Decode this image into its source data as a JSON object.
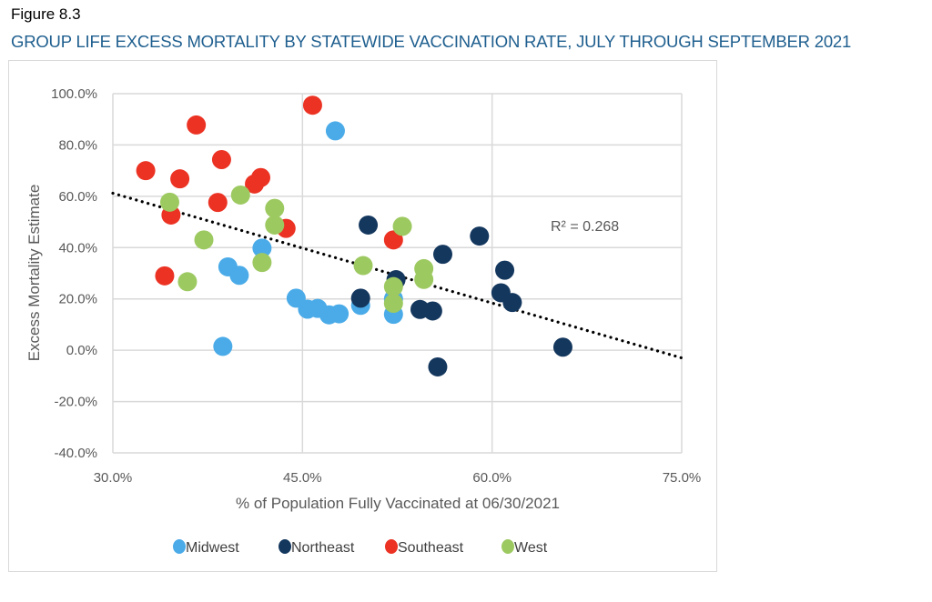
{
  "figure_label": "Figure 8.3",
  "figure_title": "GROUP LIFE EXCESS MORTALITY BY STATEWIDE VACCINATION RATE, JULY THROUGH SEPTEMBER 2021",
  "chart_data": {
    "type": "scatter",
    "title": "GROUP LIFE EXCESS MORTALITY BY STATEWIDE VACCINATION RATE, JULY THROUGH SEPTEMBER 2021",
    "xlabel": "% of Population Fully Vaccinated at 06/30/2021",
    "ylabel": "Excess Mortality Estimate",
    "xlim": [
      30,
      75
    ],
    "ylim": [
      -40,
      100
    ],
    "xticks": [
      30,
      45,
      60,
      75
    ],
    "xtick_labels": [
      "30.0%",
      "45.0%",
      "60.0%",
      "75.0%"
    ],
    "yticks": [
      100,
      80,
      60,
      40,
      20,
      0,
      -20,
      -40
    ],
    "ytick_labels": [
      "100.0%",
      "80.0%",
      "60.0%",
      "40.0%",
      "20.0%",
      "0.0%",
      "-20.0%",
      "-40.0%"
    ],
    "grid": true,
    "legend_position": "bottom",
    "trendline": {
      "type": "linear",
      "style": "dotted",
      "x": [
        30,
        75
      ],
      "y": [
        61.2,
        -3.0
      ],
      "annotation": "R² = 0.268"
    },
    "series": [
      {
        "name": "Midwest",
        "color": "#4aabe8",
        "points": [
          [
            47.6,
            85.5
          ],
          [
            41.8,
            39.8
          ],
          [
            39.1,
            32.5
          ],
          [
            40.0,
            29.2
          ],
          [
            38.7,
            1.5
          ],
          [
            44.5,
            20.3
          ],
          [
            45.4,
            16.0
          ],
          [
            46.2,
            16.3
          ],
          [
            47.1,
            13.8
          ],
          [
            47.9,
            14.2
          ],
          [
            49.6,
            17.5
          ],
          [
            52.2,
            14.0
          ],
          [
            52.2,
            20.0
          ]
        ]
      },
      {
        "name": "Northeast",
        "color": "#14375e",
        "points": [
          [
            50.2,
            48.8
          ],
          [
            52.4,
            27.5
          ],
          [
            49.6,
            20.3
          ],
          [
            54.3,
            15.9
          ],
          [
            55.3,
            15.3
          ],
          [
            55.7,
            -6.5
          ],
          [
            56.1,
            37.4
          ],
          [
            59.0,
            44.5
          ],
          [
            61.0,
            31.2
          ],
          [
            60.7,
            22.4
          ],
          [
            61.6,
            18.6
          ],
          [
            65.6,
            1.2
          ]
        ]
      },
      {
        "name": "Southeast",
        "color": "#eb3223",
        "points": [
          [
            45.8,
            95.5
          ],
          [
            36.6,
            87.8
          ],
          [
            38.6,
            74.3
          ],
          [
            32.6,
            70.0
          ],
          [
            35.3,
            66.8
          ],
          [
            41.7,
            67.3
          ],
          [
            41.2,
            64.8
          ],
          [
            38.3,
            57.6
          ],
          [
            34.6,
            52.7
          ],
          [
            43.7,
            47.5
          ],
          [
            34.1,
            29.0
          ],
          [
            52.2,
            43.0
          ]
        ]
      },
      {
        "name": "West",
        "color": "#9dc961",
        "points": [
          [
            34.5,
            57.7
          ],
          [
            40.1,
            60.5
          ],
          [
            42.8,
            55.3
          ],
          [
            42.8,
            48.8
          ],
          [
            37.2,
            43.0
          ],
          [
            41.8,
            34.2
          ],
          [
            35.9,
            26.7
          ],
          [
            49.8,
            33.0
          ],
          [
            52.9,
            48.3
          ],
          [
            54.6,
            31.8
          ],
          [
            54.6,
            27.6
          ],
          [
            52.2,
            24.8
          ],
          [
            52.2,
            18.3
          ]
        ]
      }
    ]
  }
}
